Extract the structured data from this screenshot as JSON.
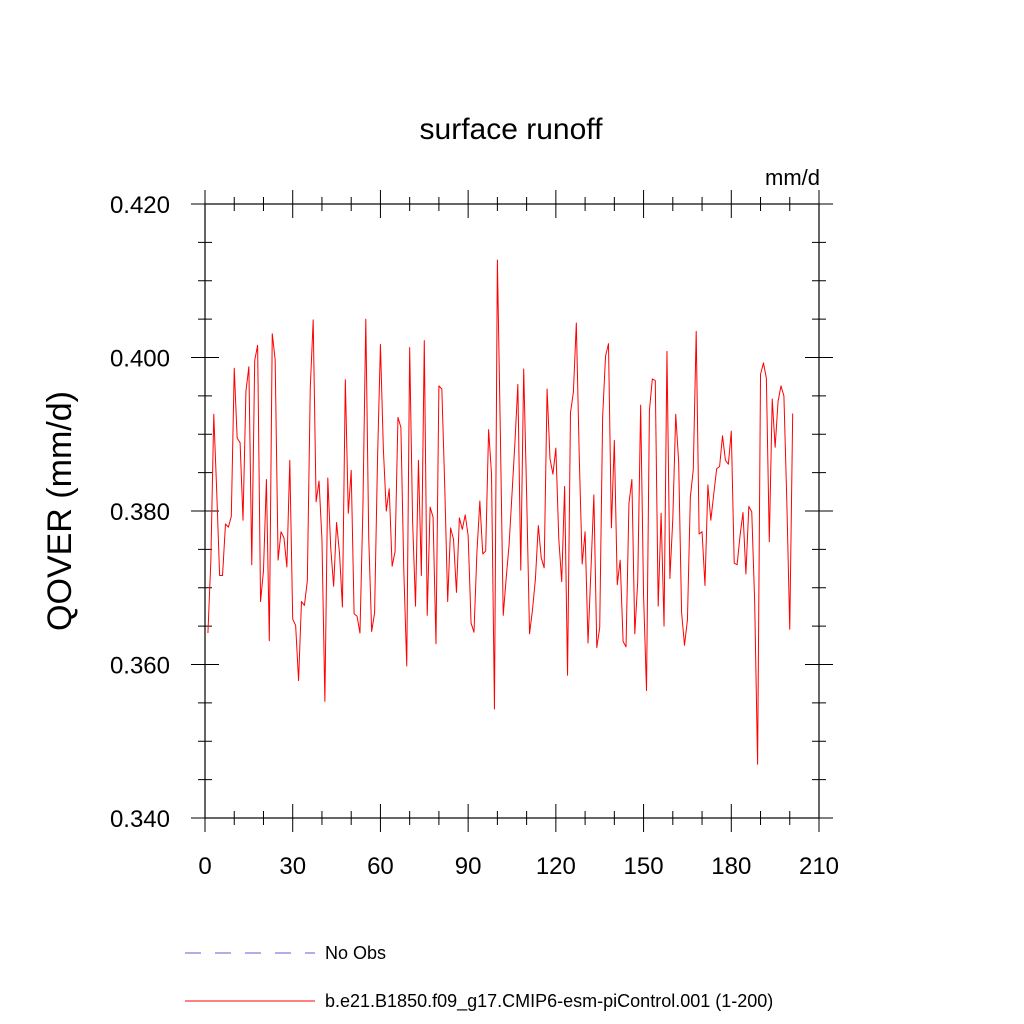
{
  "chart_data": {
    "type": "line",
    "title": "surface runoff",
    "units_label": "mm/d",
    "ylabel": "QOVER  (mm/d)",
    "xlabel": "",
    "xlim": [
      0,
      210
    ],
    "ylim": [
      0.34,
      0.42
    ],
    "x_ticks": [
      0,
      30,
      60,
      90,
      120,
      150,
      180,
      210
    ],
    "x_tick_labels": [
      "0",
      "30",
      "60",
      "90",
      "120",
      "150",
      "180",
      "210"
    ],
    "x_minor_step": 10,
    "y_ticks": [
      0.34,
      0.36,
      0.38,
      0.4,
      0.42
    ],
    "y_tick_labels": [
      "0.340",
      "0.360",
      "0.380",
      "0.400",
      "0.420"
    ],
    "y_minor_step": 0.005,
    "grid": false,
    "legend_placement": "bottom-left below plot",
    "legend": [
      {
        "label": "No Obs",
        "color": "#6a5acd",
        "dash": "dashed"
      },
      {
        "label": "b.e21.B1850.f09_g17.CMIP6-esm-piControl.001 (1-200)",
        "color": "#ff0000",
        "dash": "solid"
      }
    ],
    "series": [
      {
        "name": "b.e21.B1850.f09_g17.CMIP6-esm-piControl.001 (1-200)",
        "color": "#ff0000",
        "x_start": 1,
        "x_step": 1,
        "values": [
          0.3641,
          0.3735,
          0.3926,
          0.3826,
          0.3716,
          0.3716,
          0.3783,
          0.3779,
          0.3793,
          0.3986,
          0.3895,
          0.3889,
          0.3788,
          0.3956,
          0.3988,
          0.373,
          0.3996,
          0.4016,
          0.3682,
          0.3722,
          0.3841,
          0.3631,
          0.4031,
          0.3997,
          0.3736,
          0.3773,
          0.3765,
          0.3727,
          0.3866,
          0.3659,
          0.3651,
          0.3579,
          0.3682,
          0.3677,
          0.3709,
          0.396,
          0.4049,
          0.3812,
          0.3839,
          0.3763,
          0.3552,
          0.3843,
          0.3752,
          0.3702,
          0.3785,
          0.3745,
          0.3675,
          0.3971,
          0.3797,
          0.3853,
          0.3666,
          0.3663,
          0.3641,
          0.3803,
          0.405,
          0.3765,
          0.3643,
          0.3667,
          0.3866,
          0.4017,
          0.3881,
          0.38,
          0.3829,
          0.3728,
          0.3747,
          0.3922,
          0.3909,
          0.3722,
          0.3598,
          0.4013,
          0.3787,
          0.3676,
          0.3866,
          0.3716,
          0.4022,
          0.3664,
          0.3805,
          0.3792,
          0.3627,
          0.3963,
          0.3959,
          0.3832,
          0.3682,
          0.3778,
          0.3763,
          0.3694,
          0.3791,
          0.3776,
          0.3795,
          0.3768,
          0.3654,
          0.3642,
          0.3746,
          0.3813,
          0.3744,
          0.3748,
          0.3906,
          0.3848,
          0.3542,
          0.4127,
          0.3905,
          0.3664,
          0.3712,
          0.3756,
          0.3822,
          0.3889,
          0.3965,
          0.3723,
          0.3985,
          0.3822,
          0.364,
          0.3671,
          0.3711,
          0.3781,
          0.3739,
          0.3726,
          0.3959,
          0.3868,
          0.3848,
          0.3882,
          0.3764,
          0.3708,
          0.3832,
          0.3586,
          0.3928,
          0.3955,
          0.4045,
          0.3871,
          0.3731,
          0.3773,
          0.3628,
          0.3723,
          0.3821,
          0.3622,
          0.3648,
          0.3923,
          0.4002,
          0.4018,
          0.3778,
          0.3892,
          0.3704,
          0.3736,
          0.363,
          0.3623,
          0.381,
          0.3841,
          0.364,
          0.3708,
          0.3938,
          0.369,
          0.3566,
          0.3931,
          0.3972,
          0.397,
          0.3676,
          0.3797,
          0.365,
          0.4008,
          0.3712,
          0.379,
          0.3926,
          0.3864,
          0.3668,
          0.3625,
          0.3658,
          0.3818,
          0.3854,
          0.4034,
          0.377,
          0.3773,
          0.3703,
          0.3834,
          0.3788,
          0.3822,
          0.3855,
          0.3858,
          0.3898,
          0.3866,
          0.3861,
          0.3904,
          0.3732,
          0.373,
          0.3768,
          0.3798,
          0.3718,
          0.3806,
          0.3799,
          0.3681,
          0.347,
          0.3978,
          0.3993,
          0.3973,
          0.376,
          0.3946,
          0.3883,
          0.3943,
          0.3963,
          0.395,
          0.3811,
          0.3646,
          0.3927
        ]
      }
    ]
  }
}
